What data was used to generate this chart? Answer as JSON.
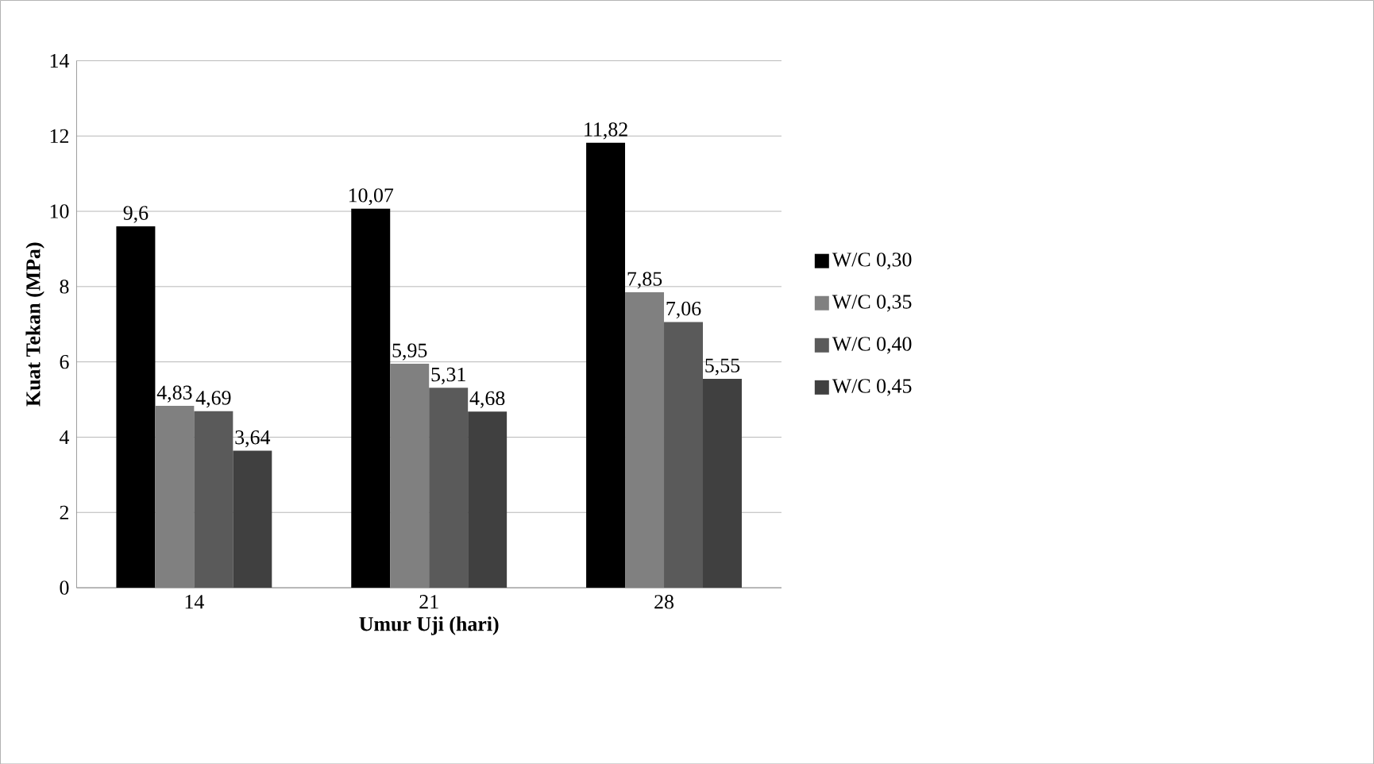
{
  "chart_data": {
    "type": "bar",
    "xlabel": "Umur Uji (hari)",
    "ylabel": "Kuat Tekan (MPa)",
    "categories": [
      "14",
      "21",
      "28"
    ],
    "series": [
      {
        "name": "W/C 0,30",
        "color": "#000000",
        "values": [
          9.6,
          10.07,
          11.82
        ],
        "value_labels": [
          "9,6",
          "10,07",
          "11,82"
        ]
      },
      {
        "name": "W/C 0,35",
        "color": "#808080",
        "values": [
          4.83,
          5.95,
          7.85
        ],
        "value_labels": [
          "4,83",
          "5,95",
          "7,85"
        ]
      },
      {
        "name": "W/C 0,40",
        "color": "#5a5a5a",
        "values": [
          4.69,
          5.31,
          7.06
        ],
        "value_labels": [
          "4,69",
          "5,31",
          "7,06"
        ]
      },
      {
        "name": "W/C 0,45",
        "color": "#404040",
        "values": [
          3.64,
          4.68,
          5.55
        ],
        "value_labels": [
          "3,64",
          "4,68",
          "5,55"
        ]
      }
    ],
    "ylim": [
      0,
      14
    ],
    "yticks": [
      0,
      2,
      4,
      6,
      8,
      10,
      12,
      14
    ],
    "grid": "y",
    "legend": "right"
  }
}
